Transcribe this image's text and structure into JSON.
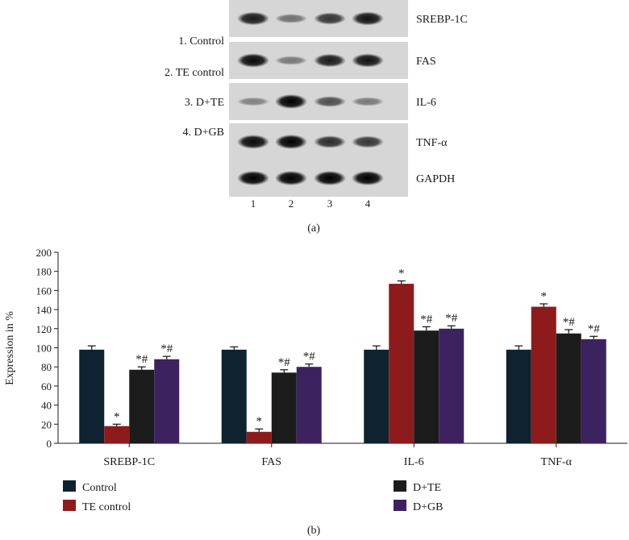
{
  "blot": {
    "groups": [
      "1. Control",
      "2. TE control",
      "3. D+TE",
      "4. D+GB"
    ],
    "rows": [
      {
        "label": "SREBP-1C",
        "intensity": [
          0.85,
          0.35,
          0.7,
          0.9
        ]
      },
      {
        "label": "FAS",
        "intensity": [
          0.95,
          0.3,
          0.85,
          0.9
        ]
      },
      {
        "label": "IL-6",
        "intensity": [
          0.25,
          1.0,
          0.55,
          0.3
        ]
      },
      {
        "label": "TNF-α",
        "intensity": [
          0.95,
          1.0,
          0.75,
          0.7
        ]
      },
      {
        "label": "GAPDH",
        "intensity": [
          1.0,
          1.0,
          1.0,
          1.0
        ]
      }
    ],
    "lanes": [
      "1",
      "2",
      "3",
      "4"
    ],
    "caption": "(a)"
  },
  "chart_data": {
    "type": "bar",
    "categories": [
      "SREBP-1C",
      "FAS",
      "IL-6",
      "TNF-α"
    ],
    "series": [
      {
        "name": "Control",
        "color": "#0e2230",
        "values": [
          98,
          98,
          98,
          98
        ],
        "errors": [
          4,
          3,
          4,
          4
        ],
        "annotations": [
          "",
          "",
          "",
          ""
        ]
      },
      {
        "name": "TE control",
        "color": "#8e1b1b",
        "values": [
          18,
          12,
          167,
          143
        ],
        "errors": [
          2,
          3,
          3,
          3
        ],
        "annotations": [
          "*",
          "*",
          "*",
          "*"
        ]
      },
      {
        "name": "D+TE",
        "color": "#1c1c1c",
        "values": [
          77,
          74,
          118,
          115
        ],
        "errors": [
          3,
          3,
          4,
          4
        ],
        "annotations": [
          "*#",
          "*#",
          "*#",
          "*#"
        ]
      },
      {
        "name": "D+GB",
        "color": "#3c2360",
        "values": [
          88,
          80,
          120,
          109
        ],
        "errors": [
          3,
          3,
          3,
          3
        ],
        "annotations": [
          "*#",
          "*#",
          "*#",
          "*#"
        ]
      }
    ],
    "ylabel": "Expression in %",
    "ylim": [
      0,
      200
    ],
    "yticks": [
      0,
      20,
      40,
      60,
      80,
      100,
      120,
      140,
      160,
      180,
      200
    ],
    "grid": false,
    "legend_position": "bottom",
    "caption": "(b)"
  }
}
